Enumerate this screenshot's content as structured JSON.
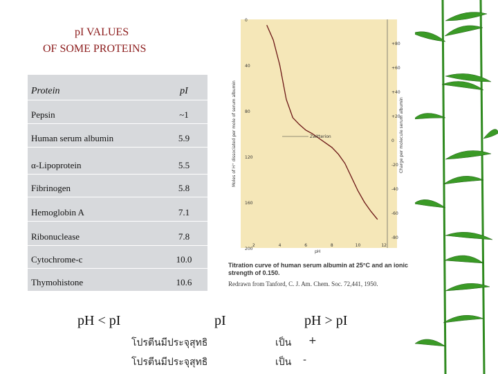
{
  "title": {
    "line1": "pI VALUES",
    "line2": "OF SOME PROTEINS"
  },
  "table": {
    "header": {
      "protein": "Protein",
      "pi": "pI"
    },
    "rows": [
      {
        "name": "Pepsin",
        "pi": "~1"
      },
      {
        "name": "Human serum albumin",
        "pi": "5.9"
      },
      {
        "name": "α-Lipoprotein",
        "pi": "5.5"
      },
      {
        "name": "Fibrinogen",
        "pi": "5.8"
      },
      {
        "name": "Hemoglobin A",
        "pi": "7.1"
      },
      {
        "name": "Ribonuclease",
        "pi": "7.8"
      },
      {
        "name": "Cytochrome-c",
        "pi": "10.0"
      },
      {
        "name": "Thymohistone",
        "pi": "10.6"
      }
    ]
  },
  "chart_data": {
    "type": "line",
    "xlabel": "pH",
    "ylabel": "Moles of H⁺ dissociated per mole of serum albumin",
    "ylabel_right": "Charge per molecule serum albumin",
    "x_ticks": [
      "2",
      "4",
      "6",
      "8",
      "10",
      "12"
    ],
    "y_ticks_left": [
      "0",
      "40",
      "80",
      "120",
      "160",
      "200"
    ],
    "y_ticks_right": [
      "+80",
      "+60",
      "+40",
      "+20",
      "0",
      "-20",
      "-40",
      "-60",
      "-80"
    ],
    "annotation": "Zwitterion",
    "xlim": [
      1,
      13
    ],
    "ylim": [
      0,
      200
    ],
    "series": [
      {
        "x": [
          3.0,
          3.5,
          4.0,
          4.5,
          5.0,
          5.5,
          6.0,
          6.5,
          7.0,
          7.5,
          8.0,
          8.5,
          9.0,
          9.5,
          10.0,
          10.5,
          11.0,
          11.5
        ],
        "y": [
          5,
          18,
          40,
          70,
          86,
          92,
          97,
          100,
          104,
          108,
          112,
          118,
          126,
          138,
          150,
          160,
          168,
          175
        ]
      }
    ]
  },
  "caption": {
    "line1": "Titration curve of human serum albumin at 25°C and an ionic strength of 0.150.",
    "line2": "Redrawn from Tanford, C. J. Am. Chem. Soc. 72,441, 1950."
  },
  "bottom": {
    "left": "pH < pI",
    "mid": "pI",
    "right": "pH > pI",
    "thai1": "โปรตีนมีประจุสุทธิ",
    "sign1_word": "เป็น",
    "sign1": "+",
    "thai2": "โปรตีนมีประจุสุทธิ",
    "sign2_word": "เป็น",
    "sign2": "-"
  },
  "colors": {
    "title": "#8b1a1a",
    "table_bg": "#d7d9dc",
    "chart_bg": "#f5e7b8",
    "curve": "#6a1515",
    "bamboo": "#2f8a1f"
  }
}
